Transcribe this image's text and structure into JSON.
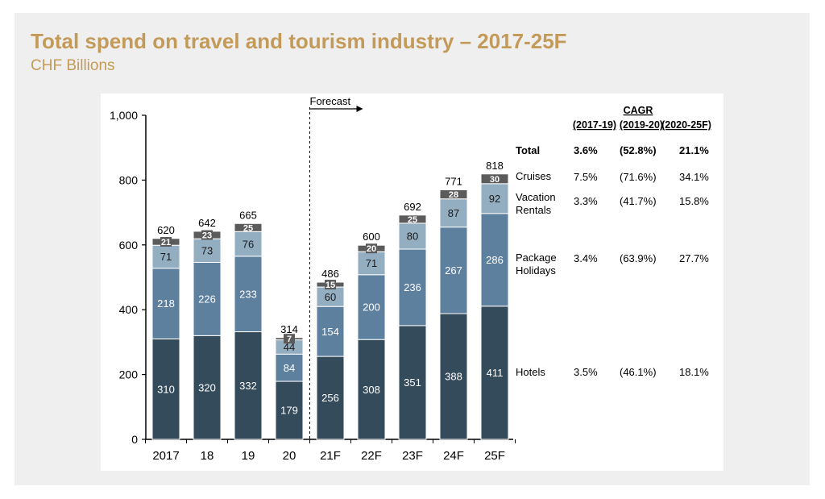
{
  "title": "Total spend on travel and tourism industry – 2017-25F",
  "subtitle": "CHF Billions",
  "colors": {
    "hotels": "#344b5c",
    "package": "#5d809e",
    "vacation": "#93adc1",
    "cruises": "#5b5b5b",
    "title": "#c49a58"
  },
  "chart_data": {
    "type": "bar",
    "stacked": true,
    "categories": [
      "2017",
      "18",
      "19",
      "20",
      "21F",
      "22F",
      "23F",
      "24F",
      "25F"
    ],
    "series": [
      {
        "key": "hotels",
        "values": [
          310,
          320,
          332,
          179,
          256,
          308,
          351,
          388,
          411
        ]
      },
      {
        "key": "package",
        "values": [
          218,
          226,
          233,
          84,
          154,
          200,
          236,
          267,
          286
        ]
      },
      {
        "key": "vacation",
        "values": [
          71,
          73,
          76,
          44,
          60,
          71,
          80,
          87,
          92
        ]
      },
      {
        "key": "cruises",
        "values": [
          21,
          23,
          25,
          7,
          15,
          20,
          25,
          28,
          30
        ]
      }
    ],
    "totals": [
      620,
      642,
      665,
      314,
      486,
      600,
      692,
      771,
      818
    ],
    "ylim": [
      0,
      1000
    ],
    "yticks": [
      "0",
      "200",
      "400",
      "600",
      "800",
      "1,000"
    ],
    "forecast_label": "Forecast",
    "cagr": {
      "heading": "CAGR",
      "periods": [
        "(2017-19)",
        "(2019-20)",
        "(2020-25F)"
      ],
      "rows": [
        {
          "label": "Total",
          "values": [
            "3.6%",
            "(52.8%)",
            "21.1%"
          ],
          "bold": true
        },
        {
          "label": "Cruises",
          "values": [
            "7.5%",
            "(71.6%)",
            "34.1%"
          ]
        },
        {
          "label": "Vacation Rentals",
          "values": [
            "3.3%",
            "(41.7%)",
            "15.8%"
          ]
        },
        {
          "label": "Package Holidays",
          "values": [
            "3.4%",
            "(63.9%)",
            "27.7%"
          ]
        },
        {
          "label": "Hotels",
          "values": [
            "3.5%",
            "(46.1%)",
            "18.1%"
          ]
        }
      ]
    }
  }
}
